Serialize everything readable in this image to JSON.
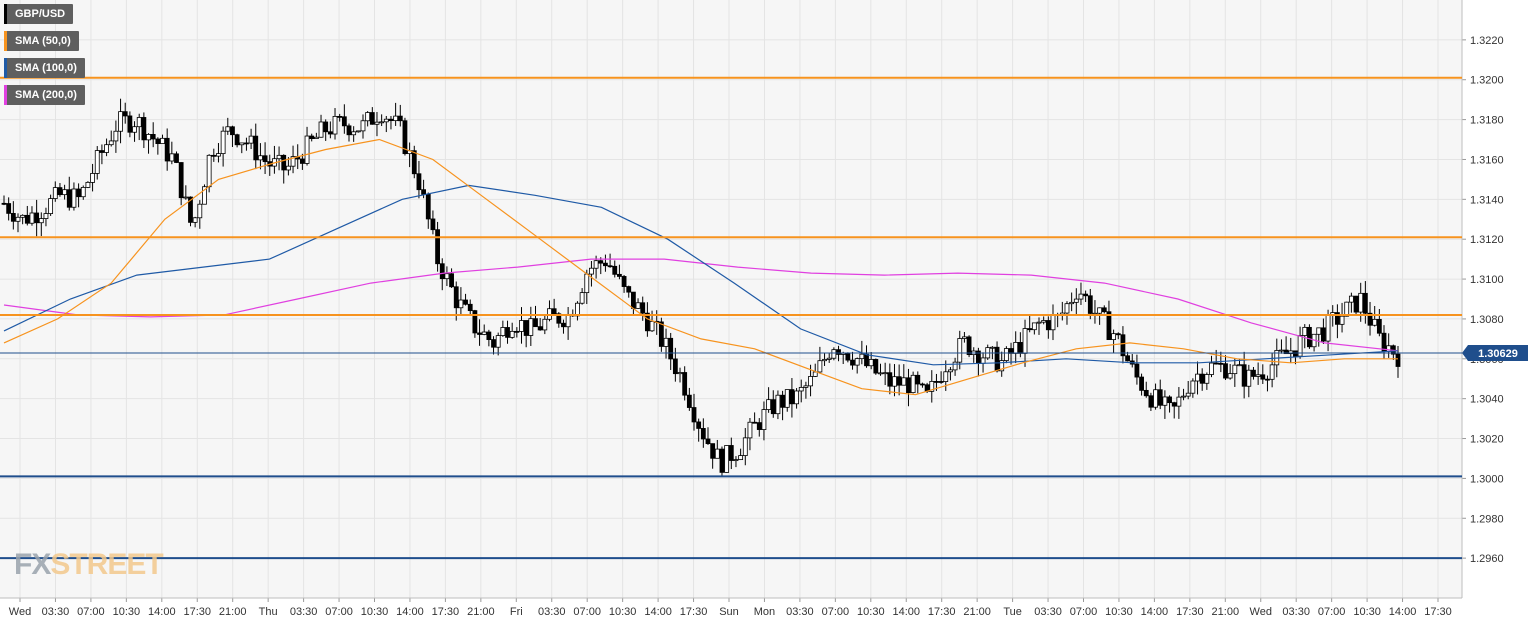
{
  "legend": [
    {
      "label": "GBP/USD",
      "color": "#000000"
    },
    {
      "label": "SMA (50,0)",
      "color": "#f7931e"
    },
    {
      "label": "SMA (100,0)",
      "color": "#1f5aa6"
    },
    {
      "label": "SMA (200,0)",
      "color": "#e040e0"
    }
  ],
  "logo": {
    "fx": "FX",
    "street": "STREET"
  },
  "chart_data": {
    "type": "candlestick",
    "symbol": "GBP/USD",
    "current_price_label": "1.30629",
    "current_price": 1.30629,
    "ylim": [
      1.294,
      1.324
    ],
    "y_ticks": [
      "1.3220",
      "1.3200",
      "1.3180",
      "1.3160",
      "1.3140",
      "1.3120",
      "1.3100",
      "1.3080",
      "1.3060",
      "1.3040",
      "1.3020",
      "1.3000",
      "1.2980",
      "1.2960"
    ],
    "x_tick_labels": [
      "Wed",
      "03:30",
      "07:00",
      "10:30",
      "14:00",
      "17:30",
      "21:00",
      "Thu",
      "03:30",
      "07:00",
      "10:30",
      "14:00",
      "17:30",
      "21:00",
      "Fri",
      "03:30",
      "07:00",
      "10:30",
      "14:00",
      "17:30",
      "Sun",
      "Mon",
      "03:30",
      "07:00",
      "10:30",
      "14:00",
      "17:30",
      "21:00",
      "Tue",
      "03:30",
      "07:00",
      "10:30",
      "14:00",
      "17:30",
      "21:00",
      "Wed",
      "03:30",
      "07:00",
      "10:30",
      "14:00",
      "17:30"
    ],
    "horizontal_levels": [
      {
        "value": 1.3201,
        "color": "#f7931e"
      },
      {
        "value": 1.3121,
        "color": "#f7931e"
      },
      {
        "value": 1.3082,
        "color": "#f7931e"
      },
      {
        "value": 1.3001,
        "color": "#1f4e8c"
      },
      {
        "value": 1.296,
        "color": "#1f4e8c"
      }
    ],
    "close_path": [
      1.3138,
      1.313,
      1.3135,
      1.3142,
      1.314,
      1.316,
      1.3178,
      1.318,
      1.317,
      1.316,
      1.3125,
      1.3165,
      1.3175,
      1.3168,
      1.3158,
      1.3155,
      1.3165,
      1.3175,
      1.3178,
      1.3176,
      1.3185,
      1.3175,
      1.315,
      1.311,
      1.309,
      1.3076,
      1.3068,
      1.308,
      1.3074,
      1.308,
      1.3082,
      1.3105,
      1.311,
      1.3092,
      1.3082,
      1.3068,
      1.305,
      1.3025,
      1.3008,
      1.3015,
      1.3028,
      1.3038,
      1.304,
      1.305,
      1.3068,
      1.3062,
      1.3055,
      1.3048,
      1.3048,
      1.304,
      1.3058,
      1.3068,
      1.3062,
      1.3058,
      1.3068,
      1.3078,
      1.308,
      1.3096,
      1.3082,
      1.3072,
      1.3052,
      1.304,
      1.3032,
      1.305,
      1.3056,
      1.3056,
      1.305,
      1.3055,
      1.3062,
      1.307,
      1.3074,
      1.3082,
      1.309,
      1.307,
      1.3062
    ],
    "sma_50": [
      1.3068,
      1.308,
      1.3098,
      1.313,
      1.315,
      1.3158,
      1.3165,
      1.317,
      1.316,
      1.314,
      1.312,
      1.31,
      1.308,
      1.307,
      1.3065,
      1.3055,
      1.3045,
      1.3042,
      1.305,
      1.3058,
      1.3065,
      1.3068,
      1.3065,
      1.306,
      1.3058,
      1.306,
      1.306
    ],
    "sma_100": [
      1.3074,
      1.309,
      1.3102,
      1.3106,
      1.311,
      1.3125,
      1.314,
      1.3147,
      1.3142,
      1.3136,
      1.312,
      1.3098,
      1.3075,
      1.3062,
      1.3057,
      1.3058,
      1.306,
      1.3058,
      1.3058,
      1.306,
      1.3062,
      1.3064
    ],
    "sma_200": [
      1.3087,
      1.3082,
      1.3081,
      1.3082,
      1.309,
      1.3098,
      1.3103,
      1.3106,
      1.311,
      1.311,
      1.3106,
      1.3103,
      1.3102,
      1.3103,
      1.3102,
      1.3098,
      1.309,
      1.3078,
      1.3068,
      1.3064
    ]
  }
}
